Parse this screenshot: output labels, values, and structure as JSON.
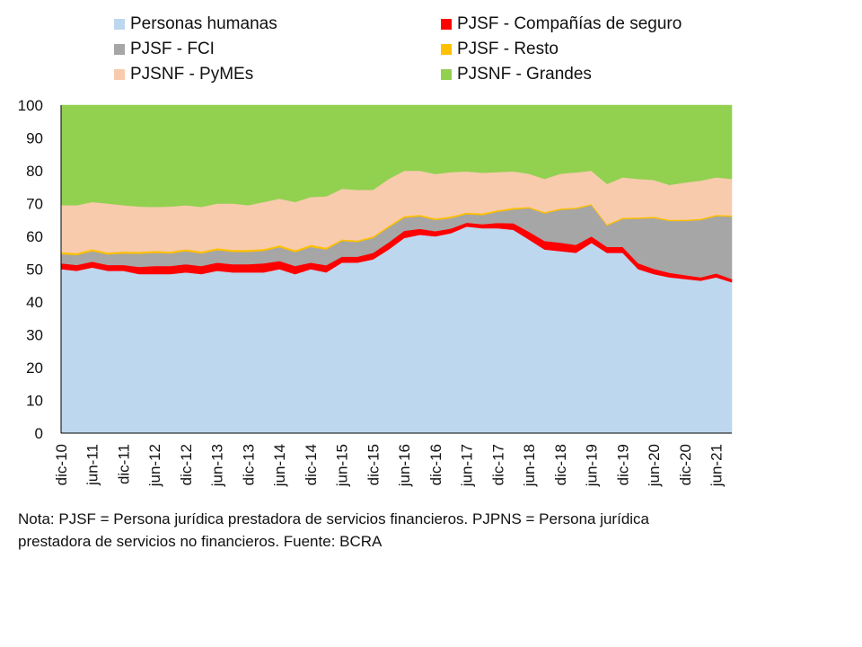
{
  "legend": [
    {
      "label": "Personas humanas",
      "color": "#bdd7ee"
    },
    {
      "label": "PJSF - Compañías de seguro",
      "color": "#ff0000"
    },
    {
      "label": "PJSF - FCI",
      "color": "#a6a6a6"
    },
    {
      "label": "PJSF - Resto",
      "color": "#ffc000"
    },
    {
      "label": "PJSNF - PyMEs",
      "color": "#f8cbad"
    },
    {
      "label": "PJSNF - Grandes",
      "color": "#92d050"
    }
  ],
  "note": "Nota: PJSF = Persona jurídica prestadora de servicios financieros. PJPNS = Persona jurídica prestadora de servicios no financieros. Fuente: BCRA",
  "chart_data": {
    "type": "area",
    "stacked": true,
    "ylim": [
      0,
      100
    ],
    "yticks": [
      0,
      10,
      20,
      30,
      40,
      50,
      60,
      70,
      80,
      90,
      100
    ],
    "grid": false,
    "legend_position": "top",
    "x_start": "dic-10",
    "x_end": "sep-21",
    "xtick_labels": [
      "dic-10",
      "jun-11",
      "dic-11",
      "jun-12",
      "dic-12",
      "jun-13",
      "dic-13",
      "jun-14",
      "dic-14",
      "jun-15",
      "dic-15",
      "jun-16",
      "dic-16",
      "jun-17",
      "dic-17",
      "jun-18",
      "dic-18",
      "jun-19",
      "dic-19",
      "jun-20",
      "dic-20",
      "jun-21"
    ],
    "x": [
      "dic-10",
      "mar-11",
      "jun-11",
      "sep-11",
      "dic-11",
      "mar-12",
      "jun-12",
      "sep-12",
      "dic-12",
      "mar-13",
      "jun-13",
      "sep-13",
      "dic-13",
      "mar-14",
      "jun-14",
      "sep-14",
      "dic-14",
      "mar-15",
      "jun-15",
      "sep-15",
      "dic-15",
      "mar-16",
      "jun-16",
      "sep-16",
      "dic-16",
      "mar-17",
      "jun-17",
      "sep-17",
      "dic-17",
      "mar-18",
      "jun-18",
      "sep-18",
      "dic-18",
      "mar-19",
      "jun-19",
      "sep-19",
      "dic-19",
      "mar-20",
      "jun-20",
      "sep-20",
      "dic-20",
      "mar-21",
      "jun-21",
      "sep-21"
    ],
    "series": [
      {
        "name": "Personas humanas",
        "color": "#bdd7ee",
        "values": [
          50,
          49.5,
          50.5,
          49.5,
          49.5,
          48.5,
          48.5,
          48.5,
          49,
          48.5,
          49.5,
          49,
          49,
          49,
          50,
          48.5,
          50,
          49,
          52,
          52,
          53,
          56,
          59.5,
          60.5,
          60,
          61,
          63,
          62.5,
          62.5,
          62,
          59,
          56,
          55.5,
          55,
          58,
          55,
          55,
          50,
          48.5,
          47.5,
          47,
          46.5,
          47.5,
          46
        ]
      },
      {
        "name": "PJSF - Compañías de seguro",
        "color": "#ff0000",
        "values": [
          1.8,
          1.8,
          1.8,
          1.8,
          1.8,
          2.2,
          2.5,
          2.5,
          2.5,
          2.5,
          2.5,
          2.5,
          2.5,
          2.8,
          2.5,
          2.5,
          2.0,
          2.2,
          1.8,
          1.8,
          2.0,
          2.2,
          2.2,
          1.8,
          1.6,
          1.4,
          1.2,
          1.2,
          1.6,
          2.0,
          2.4,
          2.6,
          2.6,
          2.4,
          2.0,
          1.8,
          1.8,
          1.8,
          1.6,
          1.4,
          1.2,
          1.0,
          1.2,
          1.0
        ]
      },
      {
        "name": "PJSF - FCI",
        "color": "#a6a6a6",
        "values": [
          2.8,
          3.0,
          3.2,
          3.2,
          3.5,
          4.0,
          4.0,
          3.8,
          4.0,
          3.8,
          3.8,
          3.8,
          3.8,
          3.8,
          4.2,
          4.2,
          4.8,
          4.8,
          4.8,
          4.5,
          4.5,
          4.5,
          4.0,
          3.8,
          3.4,
          3.2,
          2.6,
          2.8,
          3.4,
          4.2,
          7.2,
          8.4,
          10.0,
          11.0,
          9.5,
          6.5,
          8.5,
          13.6,
          15.5,
          15.8,
          16.5,
          17.5,
          17.5,
          19.0
        ]
      },
      {
        "name": "PJSF - Resto",
        "color": "#ffc000",
        "values": [
          0.6,
          0.6,
          0.6,
          0.6,
          0.6,
          0.6,
          0.6,
          0.6,
          0.6,
          0.6,
          0.6,
          0.6,
          0.6,
          0.6,
          0.6,
          0.6,
          0.6,
          0.6,
          0.5,
          0.5,
          0.5,
          0.5,
          0.5,
          0.5,
          0.5,
          0.5,
          0.5,
          0.5,
          0.5,
          0.5,
          0.4,
          0.4,
          0.4,
          0.4,
          0.4,
          0.4,
          0.4,
          0.4,
          0.4,
          0.4,
          0.4,
          0.4,
          0.4,
          0.4
        ]
      },
      {
        "name": "PJSNF - PyMEs",
        "color": "#f8cbad",
        "values": [
          14.3,
          14.6,
          14.4,
          14.9,
          14.1,
          13.8,
          13.4,
          13.7,
          13.4,
          13.6,
          13.6,
          14.1,
          13.6,
          14.3,
          14.2,
          14.7,
          14.6,
          15.6,
          15.4,
          15.4,
          14.2,
          14.3,
          13.8,
          13.4,
          13.5,
          13.5,
          12.5,
          12.4,
          11.6,
          11.1,
          10.1,
          10.1,
          10.6,
          10.7,
          10.1,
          12.3,
          12.3,
          11.7,
          11.2,
          10.6,
          11.3,
          11.6,
          11.4,
          11.1
        ]
      },
      {
        "name": "PJSNF - Grandes",
        "color": "#92d050",
        "values": [
          30.5,
          30.5,
          29.5,
          30.0,
          30.5,
          30.9,
          31.0,
          30.9,
          30.5,
          31.0,
          30.0,
          30.0,
          30.5,
          29.5,
          28.5,
          29.5,
          28.0,
          27.8,
          25.5,
          25.8,
          25.8,
          22.5,
          20.0,
          20.0,
          21.0,
          20.4,
          20.2,
          20.6,
          20.4,
          20.2,
          20.9,
          22.5,
          20.9,
          20.5,
          20.0,
          24.0,
          22.0,
          22.5,
          22.8,
          24.3,
          23.6,
          23.0,
          22.0,
          22.5
        ]
      }
    ]
  }
}
